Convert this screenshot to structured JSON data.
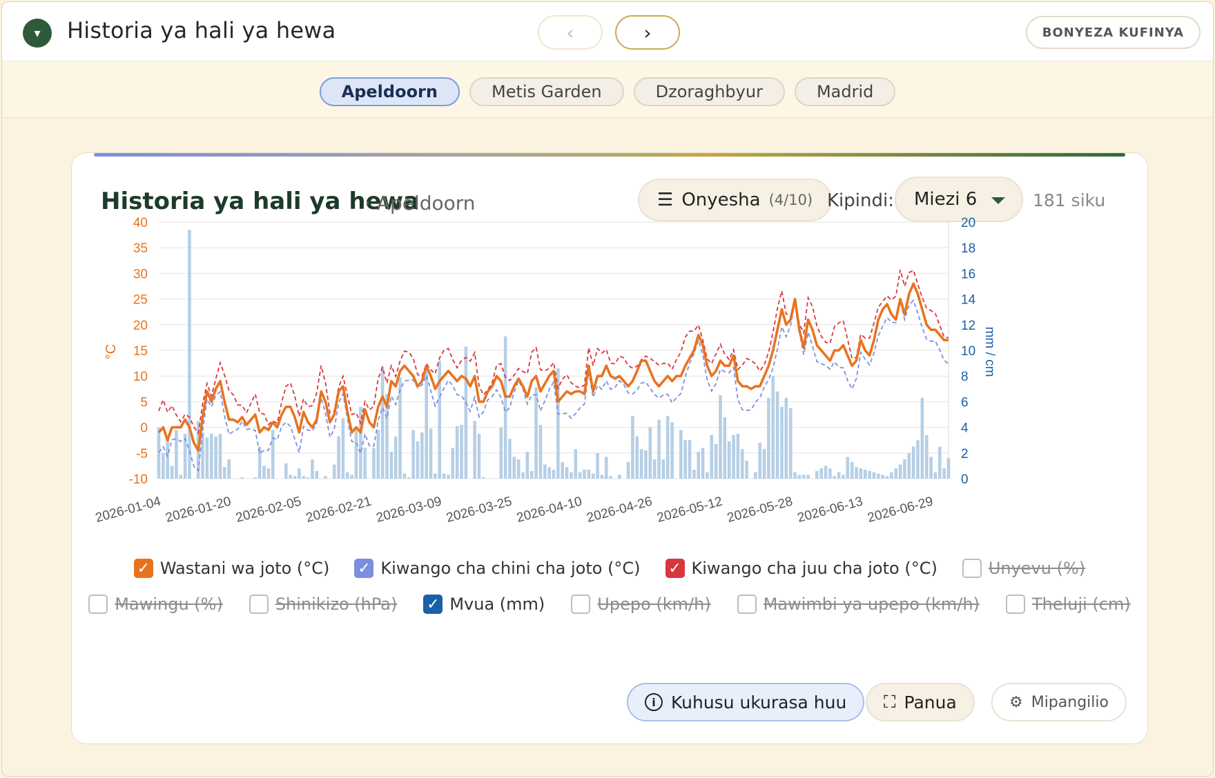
{
  "app": {
    "title": "Historia ya hali ya hewa",
    "collapse_icon": "▾",
    "prev_icon": "‹",
    "next_icon": "›",
    "press_label": "BONYEZA KUFINYA"
  },
  "cities": [
    {
      "label": "Apeldoorn",
      "active": true
    },
    {
      "label": "Metis Garden",
      "active": false
    },
    {
      "label": "Dzoraghbyur",
      "active": false
    },
    {
      "label": "Madrid",
      "active": false
    }
  ],
  "card": {
    "title": "Historia ya hali ya hewa",
    "subtitle": "· Apeldoorn",
    "show_icon": "☰",
    "show_label": "Onyesha",
    "show_count": "(4/10)",
    "period_label": "Kipindi:",
    "period_value": "Miezi 6",
    "days": "181 siku"
  },
  "legend": {
    "row1": [
      {
        "label": "Wastani wa joto (°C)",
        "checked": true,
        "color": "#e8731f"
      },
      {
        "label": "Kiwango cha chini cha joto (°C)",
        "checked": true,
        "color": "#7b8fe0"
      },
      {
        "label": "Kiwango cha juu cha joto (°C)",
        "checked": true,
        "color": "#d9363e"
      },
      {
        "label": "Unyevu (%)",
        "checked": false,
        "color": "#bdbdbd"
      }
    ],
    "row2": [
      {
        "label": "Mawingu (%)",
        "checked": false,
        "color": "#bdbdbd"
      },
      {
        "label": "Shinikizo (hPa)",
        "checked": false,
        "color": "#bdbdbd"
      },
      {
        "label": "Mvua (mm)",
        "checked": true,
        "color": "#1b5fa8"
      },
      {
        "label": "Upepo (km/h)",
        "checked": false,
        "color": "#bdbdbd"
      },
      {
        "label": "Mawimbi ya upepo (km/h)",
        "checked": false,
        "color": "#bdbdbd"
      },
      {
        "label": "Theluji (cm)",
        "checked": false,
        "color": "#bdbdbd"
      }
    ]
  },
  "buttons": {
    "about": "Kuhusu ukurasa huu",
    "about_icon": "i",
    "expand": "Panua",
    "expand_icon": "⛶",
    "settings": "Mipangilio",
    "settings_icon": "⚙"
  },
  "colors": {
    "accent_green": "#2e5a3a",
    "mean_temp": "#e8731f",
    "min_temp": "#7b8fe0",
    "max_temp": "#d9363e",
    "precip": "#b6cfe6",
    "left_axis": "#e8731f",
    "right_axis": "#1b5fa8"
  },
  "chart_data": {
    "type": "line",
    "ylabel_left": "°C",
    "ylabel_right": "mm / cm",
    "ylim_left": [
      -10,
      40
    ],
    "ylim_right": [
      0,
      20
    ],
    "yticks_left": [
      -10,
      -5,
      0,
      5,
      10,
      15,
      20,
      25,
      30,
      35,
      40
    ],
    "yticks_right": [
      0,
      2,
      4,
      6,
      8,
      10,
      12,
      14,
      16,
      18,
      20
    ],
    "xtick_labels": [
      "2026-01-04",
      "2026-01-20",
      "2026-02-05",
      "2026-02-21",
      "2026-03-09",
      "2026-03-25",
      "2026-04-10",
      "2026-04-26",
      "2026-05-12",
      "2026-05-28",
      "2026-06-13",
      "2026-06-29"
    ],
    "x_start": "2026-01-04",
    "days": 181,
    "grid": true,
    "series": [
      {
        "name": "Wastani wa joto (°C)",
        "axis": "left",
        "style": "solid",
        "key_points": [
          [
            0,
            -1
          ],
          [
            2,
            -2.5
          ],
          [
            5,
            0
          ],
          [
            6,
            1.5
          ],
          [
            7,
            0
          ],
          [
            8,
            -3
          ],
          [
            9,
            -4.5
          ],
          [
            10,
            2
          ],
          [
            11,
            7
          ],
          [
            12,
            5
          ],
          [
            13,
            7.5
          ],
          [
            14,
            9
          ],
          [
            15,
            5
          ],
          [
            16,
            1.5
          ],
          [
            17,
            1.5
          ],
          [
            18,
            1
          ],
          [
            19,
            2
          ],
          [
            20,
            0.5
          ],
          [
            21,
            1.5
          ],
          [
            22,
            2.5
          ],
          [
            23,
            -1
          ],
          [
            24,
            0
          ],
          [
            25,
            -0.5
          ],
          [
            26,
            1
          ],
          [
            27,
            0
          ],
          [
            28,
            2.5
          ],
          [
            29,
            4
          ],
          [
            30,
            4
          ],
          [
            31,
            2
          ],
          [
            32,
            -1
          ],
          [
            33,
            3
          ],
          [
            34,
            1
          ],
          [
            35,
            0
          ],
          [
            36,
            1.5
          ],
          [
            37,
            7
          ],
          [
            38,
            5
          ],
          [
            39,
            1
          ],
          [
            40,
            2.5
          ],
          [
            41,
            7
          ],
          [
            42,
            8
          ],
          [
            43,
            3
          ],
          [
            44,
            -1
          ],
          [
            45,
            0
          ],
          [
            46,
            -1
          ],
          [
            47,
            3.5
          ],
          [
            48,
            1
          ],
          [
            49,
            0
          ],
          [
            50,
            4
          ],
          [
            51,
            6
          ],
          [
            52,
            4
          ],
          [
            53,
            9
          ],
          [
            54,
            8
          ],
          [
            55,
            11
          ],
          [
            56,
            12
          ],
          [
            57,
            11
          ],
          [
            58,
            10
          ],
          [
            59,
            8
          ],
          [
            60,
            9
          ],
          [
            61,
            12
          ],
          [
            62,
            10
          ],
          [
            63,
            7.5
          ],
          [
            64,
            9
          ],
          [
            65,
            10
          ],
          [
            66,
            11
          ],
          [
            67,
            10
          ],
          [
            68,
            9
          ],
          [
            69,
            10
          ],
          [
            70,
            9.5
          ],
          [
            71,
            8
          ],
          [
            72,
            10
          ],
          [
            73,
            5
          ],
          [
            74,
            5
          ],
          [
            75,
            7
          ],
          [
            76,
            8
          ],
          [
            77,
            10
          ],
          [
            78,
            9
          ],
          [
            79,
            6
          ],
          [
            80,
            6
          ],
          [
            81,
            8
          ],
          [
            82,
            9.5
          ],
          [
            83,
            8
          ],
          [
            84,
            6
          ],
          [
            85,
            9
          ],
          [
            86,
            10
          ],
          [
            87,
            7
          ],
          [
            88,
            8.5
          ],
          [
            89,
            10
          ],
          [
            90,
            11
          ],
          [
            91,
            5
          ],
          [
            92,
            6
          ],
          [
            93,
            7
          ],
          [
            94,
            6.5
          ],
          [
            95,
            7
          ],
          [
            96,
            7
          ],
          [
            97,
            6.5
          ],
          [
            98,
            12
          ],
          [
            99,
            7
          ],
          [
            100,
            10
          ],
          [
            101,
            10
          ],
          [
            102,
            12
          ],
          [
            103,
            10
          ],
          [
            104,
            9.5
          ],
          [
            105,
            10
          ],
          [
            106,
            9
          ],
          [
            107,
            8
          ],
          [
            108,
            9
          ],
          [
            109,
            11
          ],
          [
            110,
            13
          ],
          [
            111,
            13
          ],
          [
            112,
            11
          ],
          [
            113,
            9
          ],
          [
            114,
            8
          ],
          [
            115,
            9
          ],
          [
            116,
            10
          ],
          [
            117,
            9
          ],
          [
            118,
            10
          ],
          [
            119,
            10
          ],
          [
            120,
            12
          ],
          [
            121,
            13.5
          ],
          [
            122,
            15
          ],
          [
            123,
            18
          ],
          [
            124,
            16
          ],
          [
            125,
            12
          ],
          [
            126,
            10
          ],
          [
            127,
            11
          ],
          [
            128,
            13
          ],
          [
            129,
            12
          ],
          [
            130,
            12
          ],
          [
            131,
            14
          ],
          [
            132,
            9
          ],
          [
            133,
            8
          ],
          [
            134,
            8
          ],
          [
            135,
            7.5
          ],
          [
            136,
            8
          ],
          [
            137,
            8
          ],
          [
            138,
            10
          ],
          [
            139,
            12
          ],
          [
            140,
            15
          ],
          [
            141,
            19
          ],
          [
            142,
            23
          ],
          [
            143,
            20
          ],
          [
            144,
            21
          ],
          [
            145,
            25
          ],
          [
            146,
            19
          ],
          [
            147,
            15.5
          ],
          [
            148,
            21
          ],
          [
            149,
            19
          ],
          [
            150,
            16
          ],
          [
            151,
            15
          ],
          [
            152,
            14
          ],
          [
            153,
            13
          ],
          [
            154,
            15
          ],
          [
            155,
            15
          ],
          [
            156,
            16
          ],
          [
            157,
            14
          ],
          [
            158,
            12
          ],
          [
            159,
            13
          ],
          [
            160,
            17
          ],
          [
            161,
            15
          ],
          [
            162,
            14
          ],
          [
            163,
            17
          ],
          [
            164,
            21
          ],
          [
            165,
            23
          ],
          [
            166,
            24
          ],
          [
            167,
            22
          ],
          [
            168,
            21
          ],
          [
            169,
            25
          ],
          [
            170,
            22
          ],
          [
            171,
            26
          ],
          [
            172,
            28
          ],
          [
            173,
            26
          ],
          [
            174,
            23
          ],
          [
            175,
            20
          ],
          [
            176,
            19
          ],
          [
            177,
            19
          ],
          [
            178,
            18
          ],
          [
            179,
            17
          ],
          [
            180,
            17
          ]
        ]
      },
      {
        "name": "Kiwango cha chini cha joto (°C)",
        "axis": "left",
        "style": "dashed"
      },
      {
        "name": "Kiwango cha juu cha joto (°C)",
        "axis": "left",
        "style": "dashed"
      },
      {
        "name": "Mvua (mm)",
        "axis": "right",
        "type": "bar",
        "values_by_day": {
          "0": 4,
          "1": 2,
          "2": 3.2,
          "3": 1,
          "4": 3.8,
          "5": 0.3,
          "6": 3.5,
          "7": 19.4,
          "9": 4.5,
          "10": 3.6,
          "11": 3.2,
          "12": 3.5,
          "13": 3.3,
          "14": 3.5,
          "15": 0.9,
          "16": 1.5,
          "19": 0.1,
          "22": 0.1,
          "23": 2.5,
          "24": 1,
          "25": 0.8,
          "26": 3.8,
          "29": 1.2,
          "30": 0.3,
          "31": 0.2,
          "32": 0.8,
          "33": 0.2,
          "34": 0.1,
          "35": 1.5,
          "36": 0.6,
          "38": 0.2,
          "40": 1.1,
          "41": 3.3,
          "42": 4.7,
          "43": 0.5,
          "44": 0.3,
          "45": 3.8,
          "46": 5.6,
          "47": 2.4,
          "49": 2.4,
          "50": 3.8,
          "51": 8.7,
          "52": 6.6,
          "53": 2.1,
          "54": 3.3,
          "55": 7.9,
          "56": 0.4,
          "57": 0.1,
          "58": 3.8,
          "59": 2.9,
          "60": 3.6,
          "61": 8.7,
          "62": 3.9,
          "63": 0.4,
          "64": 9.2,
          "65": 0.4,
          "66": 0.3,
          "67": 2.4,
          "68": 4.1,
          "69": 4.2,
          "70": 10.3,
          "72": 4.5,
          "73": 3.5,
          "74": 0.1,
          "78": 4,
          "79": 11.1,
          "80": 3.1,
          "81": 1.7,
          "82": 1.5,
          "83": 0.5,
          "84": 2.1,
          "85": 0.6,
          "86": 7.1,
          "87": 4.2,
          "88": 1.1,
          "89": 0.9,
          "90": 0.7,
          "91": 8.6,
          "92": 1.3,
          "93": 0.9,
          "94": 0.5,
          "95": 2.3,
          "96": 0.5,
          "97": 0.7,
          "98": 0.7,
          "99": 0.4,
          "100": 2.0,
          "101": 0.3,
          "102": 1.7,
          "103": 0.2,
          "105": 0.3,
          "107": 1.3,
          "108": 4.9,
          "109": 3.3,
          "110": 2.3,
          "111": 2.2,
          "112": 4.0,
          "113": 1.5,
          "114": 4.6,
          "115": 1.5,
          "116": 4.9,
          "117": 4.4,
          "119": 3.8,
          "120": 3.0,
          "121": 3.0,
          "122": 0.7,
          "123": 2.1,
          "124": 2.4,
          "125": 0.5,
          "126": 3.4,
          "127": 2.7,
          "128": 6.5,
          "129": 4.8,
          "130": 2.9,
          "131": 3.4,
          "132": 3.5,
          "133": 2.3,
          "134": 1.4,
          "136": 0.5,
          "137": 2.8,
          "138": 2.3,
          "139": 6.3,
          "140": 8.0,
          "141": 6.8,
          "142": 5.6,
          "143": 6.3,
          "144": 5.5,
          "145": 0.5,
          "146": 0.3,
          "147": 0.3,
          "148": 0.3,
          "150": 0.6,
          "151": 0.8,
          "152": 1.0,
          "153": 0.8,
          "154": 0.2,
          "155": 0.5,
          "156": 0.3,
          "157": 1.7,
          "158": 1.3,
          "159": 0.9,
          "160": 0.8,
          "161": 0.7,
          "162": 0.6,
          "163": 0.5,
          "164": 0.4,
          "165": 0.3,
          "166": 0.2,
          "167": 0.5,
          "168": 0.8,
          "169": 1.1,
          "170": 1.5,
          "171": 2.0,
          "172": 2.5,
          "173": 3.0,
          "174": 6.3,
          "175": 3.4,
          "176": 1.7,
          "177": 0.5,
          "178": 2.5,
          "179": 0.8,
          "180": 1.6
        }
      }
    ]
  }
}
